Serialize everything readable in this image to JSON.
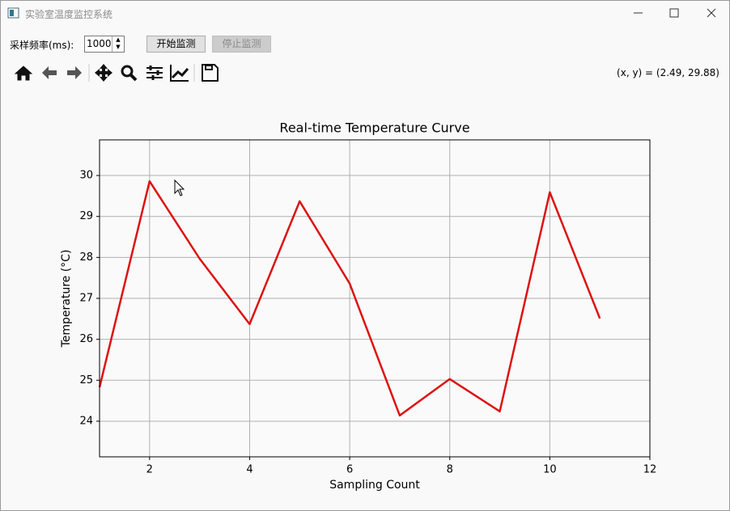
{
  "window": {
    "title": "实验室温度监控系统"
  },
  "controls": {
    "rate_label": "采样频率(ms):",
    "rate_value": 1000,
    "start_button": "开始监测",
    "stop_button": "停止监测"
  },
  "toolbar": {
    "coordinates": "(x, y) = (2.49, 29.88)"
  },
  "chart_data": {
    "type": "line",
    "title": "Real-time Temperature Curve",
    "xlabel": "Sampling Count",
    "ylabel": "Temperature (°C)",
    "x": [
      1,
      2,
      3,
      4,
      5,
      6,
      7,
      8,
      9,
      10,
      11
    ],
    "values": [
      24.83,
      29.86,
      27.97,
      26.37,
      29.37,
      27.36,
      24.14,
      25.03,
      24.24,
      29.59,
      26.51
    ],
    "color": "#dd1111",
    "xlim": [
      1,
      12
    ],
    "xticks": [
      2,
      4,
      6,
      8,
      10,
      12
    ],
    "ylim": [
      23.13,
      30.87
    ],
    "yticks": [
      24,
      25,
      26,
      27,
      28,
      29,
      30
    ],
    "grid": true
  }
}
